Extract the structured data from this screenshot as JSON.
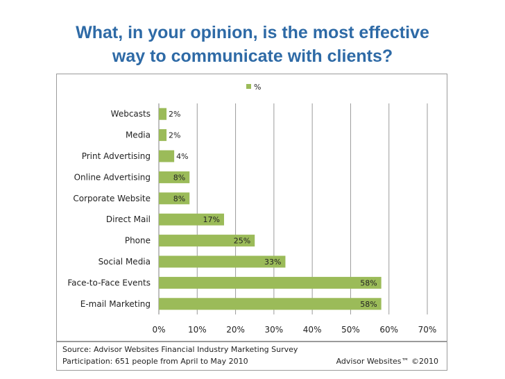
{
  "title": {
    "line1": "What, in your opinion, is the most effective",
    "line2": "way to communicate with clients?"
  },
  "chart_data": {
    "type": "bar",
    "orientation": "horizontal",
    "categories": [
      "Webcasts",
      "Media",
      "Print Advertising",
      "Online Advertising",
      "Corporate Website",
      "Direct Mail",
      "Phone",
      "Social Media",
      "Face-to-Face Events",
      "E-mail Marketing"
    ],
    "values": [
      2,
      2,
      4,
      8,
      8,
      17,
      25,
      33,
      58,
      58
    ],
    "value_labels": [
      "2%",
      "2%",
      "4%",
      "8%",
      "8%",
      "17%",
      "25%",
      "33%",
      "58%",
      "58%"
    ],
    "series_name": "%",
    "xlim": [
      0,
      70
    ],
    "xticks": [
      0,
      10,
      20,
      30,
      40,
      50,
      60,
      70
    ],
    "xtick_labels": [
      "0%",
      "10%",
      "20%",
      "30%",
      "40%",
      "50%",
      "60%",
      "70%"
    ],
    "legend_position": "top",
    "grid": true,
    "bar_color": "#9bbb59"
  },
  "footer": {
    "source": "Source: Advisor Websites Financial Industry Marketing Survey",
    "participation": "Participation:  651 people from April to May 2010",
    "brand": "Advisor Websites™ ©2010"
  }
}
